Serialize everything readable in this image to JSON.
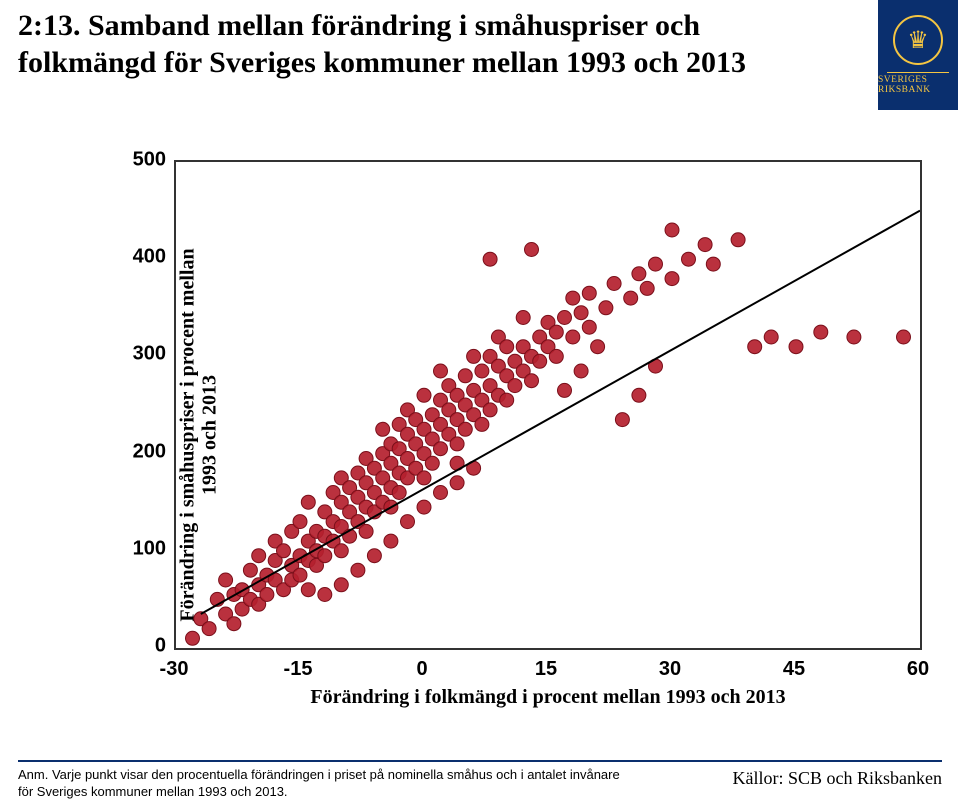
{
  "title": "2:13. Samband mellan förändring i småhuspriser och folkmängd för Sveriges kommuner mellan 1993 och 2013",
  "logo": {
    "bank_name": "SVERIGES RIKSBANK",
    "bg_color": "#0a2f6e",
    "accent_color": "#f4c542"
  },
  "chart": {
    "type": "scatter",
    "ylabel_line1": "Förändring i småhuspriser i procent mellan",
    "ylabel_line2": "1993 och 2013",
    "xlabel": "Förändring i folkmängd i procent mellan 1993 och 2013",
    "xlim": [
      -30,
      60
    ],
    "ylim": [
      0,
      500
    ],
    "xticks": [
      -30,
      -15,
      0,
      15,
      30,
      45,
      60
    ],
    "yticks": [
      0,
      100,
      200,
      300,
      400,
      500
    ],
    "tick_fontsize": 20,
    "label_fontsize": 20,
    "marker_color": "#b41f2e",
    "marker_stroke": "#7a0f1a",
    "marker_radius": 7,
    "trend_color": "#000000",
    "trend_width": 2,
    "trend_line": {
      "x1": -27,
      "y1": 35,
      "x2": 60,
      "y2": 450
    },
    "border_color": "#333333",
    "background_color": "#ffffff",
    "points": [
      [
        -28,
        10
      ],
      [
        -27,
        30
      ],
      [
        -26,
        20
      ],
      [
        -25,
        50
      ],
      [
        -24,
        35
      ],
      [
        -24,
        70
      ],
      [
        -23,
        55
      ],
      [
        -23,
        25
      ],
      [
        -22,
        60
      ],
      [
        -22,
        40
      ],
      [
        -21,
        80
      ],
      [
        -21,
        50
      ],
      [
        -20,
        95
      ],
      [
        -20,
        65
      ],
      [
        -20,
        45
      ],
      [
        -19,
        75
      ],
      [
        -19,
        55
      ],
      [
        -18,
        90
      ],
      [
        -18,
        70
      ],
      [
        -18,
        110
      ],
      [
        -17,
        60
      ],
      [
        -17,
        100
      ],
      [
        -16,
        85
      ],
      [
        -16,
        120
      ],
      [
        -16,
        70
      ],
      [
        -15,
        95
      ],
      [
        -15,
        130
      ],
      [
        -15,
        75
      ],
      [
        -14,
        110
      ],
      [
        -14,
        90
      ],
      [
        -14,
        150
      ],
      [
        -13,
        120
      ],
      [
        -13,
        100
      ],
      [
        -13,
        85
      ],
      [
        -12,
        140
      ],
      [
        -12,
        115
      ],
      [
        -12,
        95
      ],
      [
        -11,
        130
      ],
      [
        -11,
        160
      ],
      [
        -11,
        110
      ],
      [
        -10,
        150
      ],
      [
        -10,
        125
      ],
      [
        -10,
        100
      ],
      [
        -10,
        175
      ],
      [
        -9,
        140
      ],
      [
        -9,
        165
      ],
      [
        -9,
        115
      ],
      [
        -8,
        155
      ],
      [
        -8,
        180
      ],
      [
        -8,
        130
      ],
      [
        -7,
        170
      ],
      [
        -7,
        145
      ],
      [
        -7,
        195
      ],
      [
        -7,
        120
      ],
      [
        -6,
        185
      ],
      [
        -6,
        160
      ],
      [
        -6,
        140
      ],
      [
        -5,
        175
      ],
      [
        -5,
        200
      ],
      [
        -5,
        150
      ],
      [
        -5,
        225
      ],
      [
        -4,
        190
      ],
      [
        -4,
        165
      ],
      [
        -4,
        210
      ],
      [
        -4,
        145
      ],
      [
        -3,
        180
      ],
      [
        -3,
        205
      ],
      [
        -3,
        230
      ],
      [
        -3,
        160
      ],
      [
        -2,
        195
      ],
      [
        -2,
        220
      ],
      [
        -2,
        175
      ],
      [
        -2,
        245
      ],
      [
        -1,
        210
      ],
      [
        -1,
        185
      ],
      [
        -1,
        235
      ],
      [
        0,
        200
      ],
      [
        0,
        225
      ],
      [
        0,
        175
      ],
      [
        0,
        260
      ],
      [
        1,
        215
      ],
      [
        1,
        240
      ],
      [
        1,
        190
      ],
      [
        2,
        230
      ],
      [
        2,
        255
      ],
      [
        2,
        205
      ],
      [
        2,
        285
      ],
      [
        3,
        245
      ],
      [
        3,
        220
      ],
      [
        3,
        270
      ],
      [
        4,
        235
      ],
      [
        4,
        260
      ],
      [
        4,
        210
      ],
      [
        4,
        190
      ],
      [
        5,
        250
      ],
      [
        5,
        280
      ],
      [
        5,
        225
      ],
      [
        6,
        265
      ],
      [
        6,
        240
      ],
      [
        6,
        300
      ],
      [
        7,
        255
      ],
      [
        7,
        285
      ],
      [
        7,
        230
      ],
      [
        8,
        270
      ],
      [
        8,
        300
      ],
      [
        8,
        245
      ],
      [
        9,
        260
      ],
      [
        9,
        290
      ],
      [
        9,
        320
      ],
      [
        10,
        280
      ],
      [
        10,
        310
      ],
      [
        10,
        255
      ],
      [
        11,
        295
      ],
      [
        11,
        270
      ],
      [
        12,
        310
      ],
      [
        12,
        340
      ],
      [
        12,
        285
      ],
      [
        13,
        300
      ],
      [
        13,
        275
      ],
      [
        14,
        320
      ],
      [
        14,
        295
      ],
      [
        15,
        335
      ],
      [
        15,
        310
      ],
      [
        16,
        325
      ],
      [
        16,
        300
      ],
      [
        17,
        340
      ],
      [
        18,
        320
      ],
      [
        18,
        360
      ],
      [
        19,
        345
      ],
      [
        20,
        330
      ],
      [
        20,
        365
      ],
      [
        13,
        410
      ],
      [
        22,
        350
      ],
      [
        23,
        375
      ],
      [
        8,
        400
      ],
      [
        25,
        360
      ],
      [
        26,
        385
      ],
      [
        27,
        370
      ],
      [
        28,
        395
      ],
      [
        30,
        380
      ],
      [
        30,
        430
      ],
      [
        32,
        400
      ],
      [
        34,
        415
      ],
      [
        35,
        395
      ],
      [
        38,
        420
      ],
      [
        40,
        310
      ],
      [
        42,
        320
      ],
      [
        45,
        310
      ],
      [
        48,
        325
      ],
      [
        52,
        320
      ],
      [
        58,
        320
      ],
      [
        24,
        235
      ],
      [
        26,
        260
      ],
      [
        28,
        290
      ],
      [
        21,
        310
      ],
      [
        19,
        285
      ],
      [
        17,
        265
      ],
      [
        -14,
        60
      ],
      [
        -12,
        55
      ],
      [
        -10,
        65
      ],
      [
        -8,
        80
      ],
      [
        -6,
        95
      ],
      [
        -4,
        110
      ],
      [
        -2,
        130
      ],
      [
        0,
        145
      ],
      [
        2,
        160
      ],
      [
        4,
        170
      ],
      [
        6,
        185
      ]
    ]
  },
  "footnote": "Anm. Varje punkt visar den procentuella förändringen i priset på nominella småhus och i antalet invånare för Sveriges kommuner mellan 1993 och 2013.",
  "sources": "Källor: SCB och Riksbanken"
}
